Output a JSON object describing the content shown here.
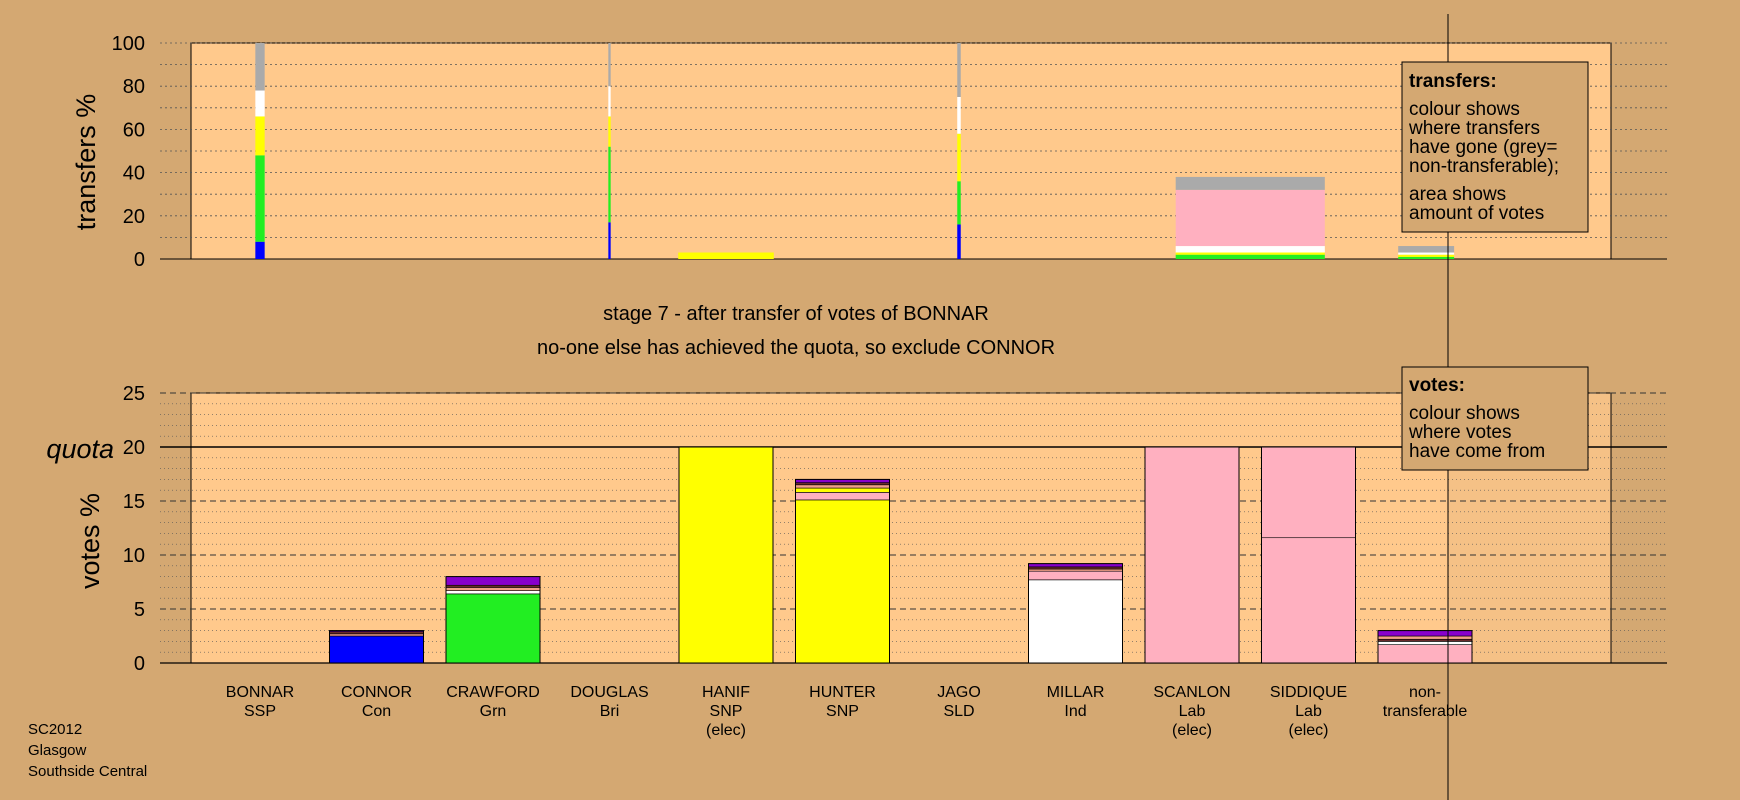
{
  "captions": {
    "stage": "stage 7 - after transfer of votes of BONNAR",
    "action": "no-one else has achieved the quota, so exclude CONNOR"
  },
  "footer": [
    "SC2012",
    "Glasgow",
    "Southside Central"
  ],
  "legend_transfers": {
    "title": "transfers:",
    "lines": [
      "colour shows",
      "where transfers",
      "have gone (grey=",
      "non-transferable);",
      "area shows",
      "amount of votes"
    ]
  },
  "legend_votes": {
    "title": "votes:",
    "lines": [
      "colour shows",
      "where votes",
      "have come from"
    ]
  },
  "colors": {
    "background": "#D4A872",
    "plot_background": "#FFC98C",
    "SSP": "#F2A088",
    "Con": "#0000FF",
    "Grn": "#22EE22",
    "Bri": "#B8B8B8",
    "SNP": "#FFFF00",
    "SLD": "#FFAA33",
    "Ind": "#FFFFFF",
    "Lab": "#FFB0C0",
    "dark": "#6A2A2A",
    "purple": "#8800CC",
    "nontransferable": "#AAAAAA"
  },
  "chart_data": [
    {
      "type": "bar",
      "panel": "transfers",
      "ylabel": "transfers %",
      "ylim": [
        0,
        100
      ],
      "yticks": [
        0,
        20,
        40,
        60,
        80,
        100
      ],
      "grid": true,
      "bars": [
        {
          "x": 0,
          "width": 0.08,
          "segments": [
            {
              "color": "#0000FF",
              "value": 8
            },
            {
              "color": "#22EE22",
              "value": 40
            },
            {
              "color": "#FFFF00",
              "value": 18
            },
            {
              "color": "#FFFFFF",
              "value": 12
            },
            {
              "color": "#AAAAAA",
              "value": 22
            }
          ]
        },
        {
          "x": 3,
          "width": 0.02,
          "segments": [
            {
              "color": "#0000FF",
              "value": 17
            },
            {
              "color": "#22EE22",
              "value": 35
            },
            {
              "color": "#FFFF00",
              "value": 14
            },
            {
              "color": "#FFFFFF",
              "value": 14
            },
            {
              "color": "#AAAAAA",
              "value": 20
            }
          ]
        },
        {
          "x": 4,
          "width": 0.82,
          "segments": [
            {
              "color": "#FFFF00",
              "value": 3
            }
          ]
        },
        {
          "x": 6,
          "width": 0.03,
          "segments": [
            {
              "color": "#0000FF",
              "value": 16
            },
            {
              "color": "#22EE22",
              "value": 20
            },
            {
              "color": "#FFFF00",
              "value": 22
            },
            {
              "color": "#FFFFFF",
              "value": 17
            },
            {
              "color": "#AAAAAA",
              "value": 25
            }
          ]
        },
        {
          "x": 8.5,
          "width": 1.28,
          "segments": [
            {
              "color": "#22EE22",
              "value": 2
            },
            {
              "color": "#FFFF00",
              "value": 1
            },
            {
              "color": "#FFFFFF",
              "value": 3
            },
            {
              "color": "#FFB0C0",
              "value": 26
            },
            {
              "color": "#AAAAAA",
              "value": 6
            }
          ]
        },
        {
          "x": 10.01,
          "width": 0.48,
          "segments": [
            {
              "color": "#22EE22",
              "value": 1
            },
            {
              "color": "#FFFF00",
              "value": 1
            },
            {
              "color": "#FFFFFF",
              "value": 1
            },
            {
              "color": "#AAAAAA",
              "value": 3
            }
          ]
        }
      ]
    },
    {
      "type": "bar",
      "panel": "votes",
      "ylabel": "votes %",
      "ylim": [
        0,
        25
      ],
      "yticks": [
        0,
        5,
        10,
        15,
        20,
        25
      ],
      "quota": 20,
      "quota_label": "quota",
      "categories": [
        {
          "name": "BONNAR",
          "party": "SSP",
          "note": ""
        },
        {
          "name": "CONNOR",
          "party": "Con",
          "note": ""
        },
        {
          "name": "CRAWFORD",
          "party": "Grn",
          "note": ""
        },
        {
          "name": "DOUGLAS",
          "party": "Bri",
          "note": ""
        },
        {
          "name": "HANIF",
          "party": "SNP",
          "note": "(elec)"
        },
        {
          "name": "HUNTER",
          "party": "SNP",
          "note": ""
        },
        {
          "name": "JAGO",
          "party": "SLD",
          "note": ""
        },
        {
          "name": "MILLAR",
          "party": "Ind",
          "note": ""
        },
        {
          "name": "SCANLON",
          "party": "Lab",
          "note": "(elec)"
        },
        {
          "name": "SIDDIQUE",
          "party": "Lab",
          "note": "(elec)"
        },
        {
          "name": "non-",
          "party": "transferable",
          "note": ""
        }
      ],
      "stacks": [
        [],
        [
          {
            "color": "#0000FF",
            "value": 2.5
          },
          {
            "color": "#F2A088",
            "value": 0.2
          },
          {
            "color": "#6A2A2A",
            "value": 0.2
          },
          {
            "color": "#8800CC",
            "value": 0.1
          }
        ],
        [
          {
            "color": "#22EE22",
            "value": 6.4
          },
          {
            "color": "#FFFFFF",
            "value": 0.3
          },
          {
            "color": "#F2A088",
            "value": 0.3
          },
          {
            "color": "#6A2A2A",
            "value": 0.2
          },
          {
            "color": "#8800CC",
            "value": 0.8
          }
        ],
        [],
        [
          {
            "color": "#FFFF00",
            "value": 20
          }
        ],
        [
          {
            "color": "#FFFF00",
            "value": 15.1
          },
          {
            "color": "#FFB0C0",
            "value": 0.7
          },
          {
            "color": "#FFFF00",
            "value": 0.4
          },
          {
            "color": "#F2A088",
            "value": 0.3
          },
          {
            "color": "#6A2A2A",
            "value": 0.2
          },
          {
            "color": "#8800CC",
            "value": 0.3
          }
        ],
        [],
        [
          {
            "color": "#FFFFFF",
            "value": 7.7
          },
          {
            "color": "#FFB0C0",
            "value": 0.8
          },
          {
            "color": "#F2A088",
            "value": 0.2
          },
          {
            "color": "#6A2A2A",
            "value": 0.2
          },
          {
            "color": "#8800CC",
            "value": 0.3
          }
        ],
        [
          {
            "color": "#FFB0C0",
            "value": 20
          }
        ],
        [
          {
            "color": "#FFB0C0",
            "value": 11.6
          },
          {
            "color": "#FFB0C0",
            "value": 8.4
          }
        ],
        [
          {
            "color": "#FFB0C0",
            "value": 1.7
          },
          {
            "color": "#FFFFFF",
            "value": 0.3
          },
          {
            "color": "#6A2A2A",
            "value": 0.2
          },
          {
            "color": "#F2A088",
            "value": 0.3
          },
          {
            "color": "#8800CC",
            "value": 0.5
          }
        ]
      ]
    }
  ]
}
